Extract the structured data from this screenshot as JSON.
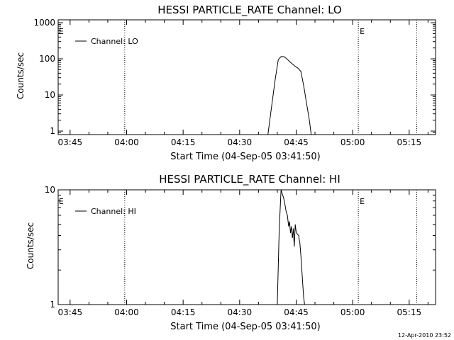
{
  "footer": {
    "timestamp": "12-Apr-2010 23:52"
  },
  "chart_data": [
    {
      "type": "line",
      "title": "HESSI PARTICLE_RATE Channel: LO",
      "xlabel": "Start Time (04-Sep-05 03:41:50)",
      "ylabel": "Counts/sec",
      "y_scale": "log",
      "xlim": [
        "03:41:50",
        "05:22:00"
      ],
      "ylim": [
        0.8,
        1200
      ],
      "xtick_labels": [
        "03:45",
        "04:00",
        "04:15",
        "04:30",
        "04:45",
        "05:00",
        "05:15"
      ],
      "ytick_labels": [
        "1",
        "10",
        "100",
        "1000"
      ],
      "ytick_values": [
        1,
        10,
        100,
        1000
      ],
      "legend": {
        "placement": "top-left",
        "entries": [
          "Channel: LO"
        ]
      },
      "vertical_markers": [
        {
          "time": "03:59:30",
          "style": "dotted",
          "label": ""
        },
        {
          "time": "05:01:30",
          "style": "dotted",
          "label": "E"
        },
        {
          "time": "05:17:00",
          "style": "dotted",
          "label": ""
        }
      ],
      "edge_labels": [
        {
          "time": "03:42:00",
          "label": "E"
        }
      ],
      "series": [
        {
          "name": "Channel: LO",
          "x": [
            "04:37:30",
            "04:38:30",
            "04:39:30",
            "04:40:15",
            "04:41:00",
            "04:41:45",
            "04:42:30",
            "04:43:30",
            "04:44:30",
            "04:45:30",
            "04:46:15",
            "04:47:00",
            "04:47:45",
            "04:48:30",
            "04:49:00"
          ],
          "values": [
            0.8,
            5,
            30,
            95,
            115,
            115,
            100,
            80,
            65,
            55,
            45,
            18,
            6,
            2,
            0.8
          ]
        }
      ]
    },
    {
      "type": "line",
      "title": "HESSI PARTICLE_RATE Channel: HI",
      "xlabel": "Start Time (04-Sep-05 03:41:50)",
      "ylabel": "Counts/sec",
      "y_scale": "log",
      "xlim": [
        "03:41:50",
        "05:22:00"
      ],
      "ylim": [
        1,
        10
      ],
      "xtick_labels": [
        "03:45",
        "04:00",
        "04:15",
        "04:30",
        "04:45",
        "05:00",
        "05:15"
      ],
      "ytick_labels": [
        "1",
        "10"
      ],
      "ytick_values": [
        1,
        10
      ],
      "legend": {
        "placement": "top-left",
        "entries": [
          "Channel: HI"
        ]
      },
      "vertical_markers": [
        {
          "time": "03:59:30",
          "style": "dotted",
          "label": ""
        },
        {
          "time": "05:01:30",
          "style": "dotted",
          "label": "E"
        },
        {
          "time": "05:17:00",
          "style": "dotted",
          "label": ""
        }
      ],
      "edge_labels": [
        {
          "time": "03:42:00",
          "label": "E"
        }
      ],
      "series": [
        {
          "name": "Channel: HI",
          "x": [
            "04:40:00",
            "04:40:30",
            "04:41:00",
            "04:41:20",
            "04:41:40",
            "04:42:00",
            "04:42:20",
            "04:42:40",
            "04:43:00",
            "04:43:15",
            "04:43:30",
            "04:43:45",
            "04:44:00",
            "04:44:15",
            "04:44:30",
            "04:44:45",
            "04:45:00",
            "04:45:20",
            "04:45:40",
            "04:46:00",
            "04:46:15",
            "04:46:30",
            "04:46:45",
            "04:47:00",
            "04:47:15"
          ],
          "values": [
            1,
            4.5,
            10,
            9.2,
            8.5,
            7.5,
            6.5,
            6,
            4.8,
            5.3,
            4.2,
            4.8,
            3.8,
            4.6,
            3.2,
            5,
            4.3,
            4.1,
            4.0,
            3.4,
            2.7,
            2.0,
            1.5,
            1.15,
            1
          ]
        }
      ]
    }
  ]
}
